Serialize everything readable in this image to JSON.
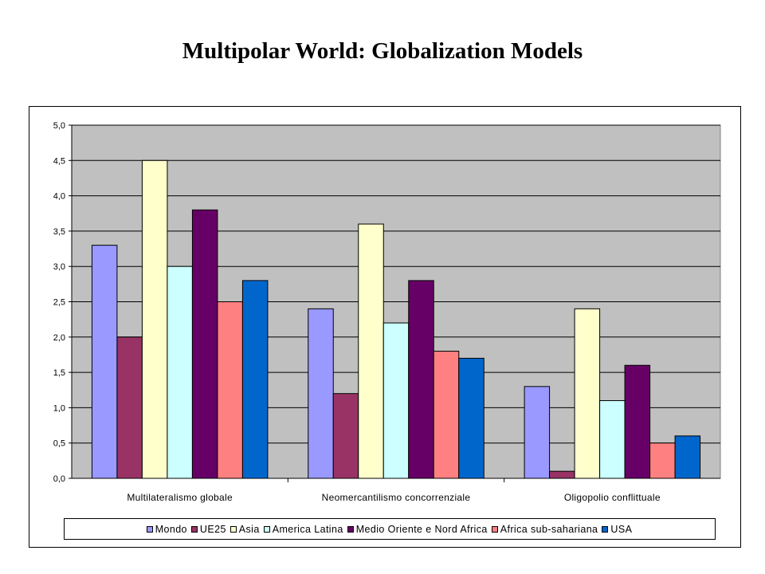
{
  "title": "Multipolar World: Globalization Models",
  "chart_data": {
    "type": "bar",
    "categories": [
      "Multilateralismo globale",
      "Neomercantilismo concorrenziale",
      "Oligopolio conflittuale"
    ],
    "series": [
      {
        "name": "Mondo",
        "color": "#9999ff",
        "values": [
          3.3,
          2.4,
          1.3
        ]
      },
      {
        "name": "UE25",
        "color": "#993366",
        "values": [
          2.0,
          1.2,
          0.1
        ]
      },
      {
        "name": "Asia",
        "color": "#ffffcc",
        "values": [
          4.5,
          3.6,
          2.4
        ]
      },
      {
        "name": "America Latina",
        "color": "#ccffff",
        "values": [
          3.0,
          2.2,
          1.1
        ]
      },
      {
        "name": "Medio Oriente e Nord Africa",
        "color": "#660066",
        "values": [
          3.8,
          2.8,
          1.6
        ]
      },
      {
        "name": "Africa sub-sahariana",
        "color": "#ff8080",
        "values": [
          2.5,
          1.8,
          0.5
        ]
      },
      {
        "name": "USA",
        "color": "#0066cc",
        "values": [
          2.8,
          1.7,
          0.6
        ]
      }
    ],
    "yticks": [
      "0,0",
      "0,5",
      "1,0",
      "1,5",
      "2,0",
      "2,5",
      "3,0",
      "3,5",
      "4,0",
      "4,5",
      "5,0"
    ],
    "ylim": [
      0,
      5
    ],
    "grid": true,
    "plot_background": "#c0c0c0",
    "legend_position": "bottom"
  }
}
